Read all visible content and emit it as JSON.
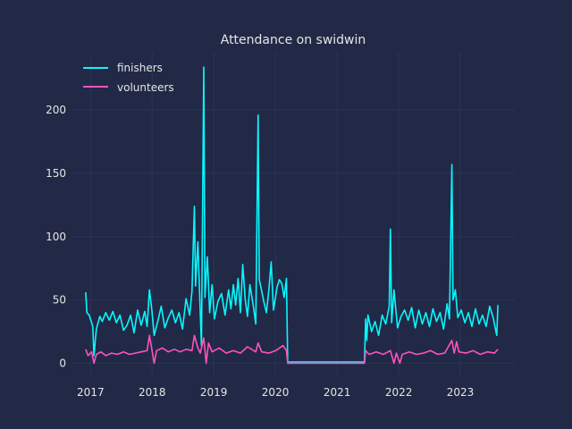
{
  "chart_data": {
    "type": "line",
    "title": "Attendance on swidwin",
    "xlabel": "",
    "ylabel": "",
    "grid": true,
    "legend_position": "top-left",
    "x_range": [
      "2016-09-10",
      "2023-11-20"
    ],
    "ylim": [
      -11,
      246
    ],
    "x_ticks": [
      "2017",
      "2018",
      "2019",
      "2020",
      "2021",
      "2022",
      "2023"
    ],
    "y_ticks": [
      0,
      50,
      100,
      150,
      200
    ],
    "colors": {
      "background": "#212946",
      "grid": "#2A3459",
      "finishers": "#08F7FE",
      "volunteers": "#FE53BB",
      "text": "#e6e6e6"
    },
    "series": [
      {
        "name": "finishers",
        "color": "#08F7FE",
        "points": [
          [
            "2016-12-03",
            56
          ],
          [
            "2016-12-10",
            40
          ],
          [
            "2016-12-24",
            38
          ],
          [
            "2017-01-14",
            29
          ],
          [
            "2017-01-21",
            6
          ],
          [
            "2017-02-04",
            27
          ],
          [
            "2017-02-25",
            37
          ],
          [
            "2017-03-11",
            33
          ],
          [
            "2017-04-01",
            40
          ],
          [
            "2017-04-22",
            34
          ],
          [
            "2017-05-13",
            41
          ],
          [
            "2017-06-03",
            32
          ],
          [
            "2017-06-24",
            38
          ],
          [
            "2017-07-15",
            26
          ],
          [
            "2017-08-05",
            30
          ],
          [
            "2017-08-26",
            38
          ],
          [
            "2017-09-16",
            24
          ],
          [
            "2017-10-07",
            42
          ],
          [
            "2017-10-28",
            30
          ],
          [
            "2017-11-18",
            41
          ],
          [
            "2017-12-02",
            29
          ],
          [
            "2017-12-16",
            58
          ],
          [
            "2017-12-30",
            42
          ],
          [
            "2018-01-13",
            22
          ],
          [
            "2018-02-03",
            33
          ],
          [
            "2018-02-24",
            45
          ],
          [
            "2018-03-17",
            28
          ],
          [
            "2018-04-07",
            36
          ],
          [
            "2018-04-28",
            42
          ],
          [
            "2018-05-19",
            32
          ],
          [
            "2018-06-09",
            40
          ],
          [
            "2018-06-30",
            27
          ],
          [
            "2018-07-21",
            51
          ],
          [
            "2018-08-11",
            38
          ],
          [
            "2018-08-25",
            57
          ],
          [
            "2018-09-08",
            124
          ],
          [
            "2018-09-15",
            61
          ],
          [
            "2018-09-29",
            96
          ],
          [
            "2018-10-13",
            40
          ],
          [
            "2018-10-20",
            14
          ],
          [
            "2018-11-03",
            234
          ],
          [
            "2018-11-10",
            52
          ],
          [
            "2018-11-24",
            84
          ],
          [
            "2018-12-08",
            40
          ],
          [
            "2018-12-22",
            62
          ],
          [
            "2019-01-05",
            35
          ],
          [
            "2019-01-26",
            49
          ],
          [
            "2019-02-16",
            55
          ],
          [
            "2019-03-09",
            38
          ],
          [
            "2019-03-30",
            58
          ],
          [
            "2019-04-13",
            43
          ],
          [
            "2019-04-27",
            62
          ],
          [
            "2019-05-11",
            46
          ],
          [
            "2019-05-25",
            67
          ],
          [
            "2019-06-08",
            40
          ],
          [
            "2019-06-22",
            78
          ],
          [
            "2019-07-06",
            51
          ],
          [
            "2019-07-20",
            37
          ],
          [
            "2019-08-03",
            62
          ],
          [
            "2019-08-24",
            45
          ],
          [
            "2019-09-07",
            31
          ],
          [
            "2019-09-21",
            196
          ],
          [
            "2019-09-28",
            66
          ],
          [
            "2019-10-12",
            57
          ],
          [
            "2019-10-26",
            48
          ],
          [
            "2019-11-09",
            40
          ],
          [
            "2019-11-23",
            57
          ],
          [
            "2019-12-07",
            80
          ],
          [
            "2019-12-21",
            42
          ],
          [
            "2020-01-11",
            60
          ],
          [
            "2020-01-25",
            66
          ],
          [
            "2020-02-08",
            63
          ],
          [
            "2020-02-22",
            52
          ],
          [
            "2020-03-07",
            67
          ],
          [
            "2020-03-14",
            1
          ],
          [
            "2020-06-01",
            1
          ],
          [
            "2021-01-01",
            1
          ],
          [
            "2021-06-01",
            1
          ],
          [
            "2021-06-12",
            1
          ],
          [
            "2021-06-19",
            35
          ],
          [
            "2021-06-26",
            18
          ],
          [
            "2021-07-03",
            38
          ],
          [
            "2021-07-24",
            25
          ],
          [
            "2021-08-14",
            33
          ],
          [
            "2021-09-04",
            22
          ],
          [
            "2021-09-25",
            38
          ],
          [
            "2021-10-16",
            31
          ],
          [
            "2021-11-06",
            45
          ],
          [
            "2021-11-13",
            106
          ],
          [
            "2021-11-20",
            32
          ],
          [
            "2021-12-04",
            58
          ],
          [
            "2021-12-25",
            28
          ],
          [
            "2022-01-15",
            37
          ],
          [
            "2022-02-05",
            42
          ],
          [
            "2022-02-26",
            34
          ],
          [
            "2022-03-19",
            44
          ],
          [
            "2022-04-09",
            28
          ],
          [
            "2022-04-30",
            42
          ],
          [
            "2022-05-21",
            31
          ],
          [
            "2022-06-11",
            40
          ],
          [
            "2022-07-02",
            29
          ],
          [
            "2022-07-23",
            43
          ],
          [
            "2022-08-13",
            33
          ],
          [
            "2022-09-03",
            40
          ],
          [
            "2022-09-24",
            27
          ],
          [
            "2022-10-15",
            47
          ],
          [
            "2022-10-29",
            35
          ],
          [
            "2022-11-12",
            157
          ],
          [
            "2022-11-19",
            50
          ],
          [
            "2022-12-03",
            58
          ],
          [
            "2022-12-17",
            36
          ],
          [
            "2023-01-07",
            42
          ],
          [
            "2023-01-28",
            32
          ],
          [
            "2023-02-18",
            40
          ],
          [
            "2023-03-11",
            29
          ],
          [
            "2023-04-01",
            43
          ],
          [
            "2023-04-22",
            31
          ],
          [
            "2023-05-13",
            38
          ],
          [
            "2023-06-03",
            29
          ],
          [
            "2023-06-24",
            45
          ],
          [
            "2023-07-15",
            36
          ],
          [
            "2023-08-05",
            22
          ],
          [
            "2023-08-12",
            46
          ]
        ]
      },
      {
        "name": "volunteers",
        "color": "#FE53BB",
        "points": [
          [
            "2016-12-03",
            11
          ],
          [
            "2016-12-17",
            6
          ],
          [
            "2017-01-07",
            9
          ],
          [
            "2017-01-21",
            0
          ],
          [
            "2017-02-04",
            7
          ],
          [
            "2017-03-04",
            9
          ],
          [
            "2017-04-01",
            6
          ],
          [
            "2017-05-06",
            8
          ],
          [
            "2017-06-10",
            7
          ],
          [
            "2017-07-15",
            9
          ],
          [
            "2017-08-19",
            7
          ],
          [
            "2017-09-23",
            8
          ],
          [
            "2017-10-28",
            9
          ],
          [
            "2017-12-02",
            10
          ],
          [
            "2017-12-16",
            22
          ],
          [
            "2017-12-30",
            11
          ],
          [
            "2018-01-13",
            0
          ],
          [
            "2018-01-27",
            10
          ],
          [
            "2018-03-03",
            12
          ],
          [
            "2018-04-07",
            9
          ],
          [
            "2018-05-12",
            11
          ],
          [
            "2018-06-16",
            9
          ],
          [
            "2018-07-21",
            11
          ],
          [
            "2018-08-25",
            10
          ],
          [
            "2018-09-08",
            22
          ],
          [
            "2018-09-29",
            12
          ],
          [
            "2018-10-13",
            8
          ],
          [
            "2018-11-03",
            20
          ],
          [
            "2018-11-17",
            0
          ],
          [
            "2018-12-01",
            16
          ],
          [
            "2018-12-22",
            9
          ],
          [
            "2019-02-02",
            12
          ],
          [
            "2019-03-16",
            8
          ],
          [
            "2019-04-27",
            10
          ],
          [
            "2019-06-08",
            8
          ],
          [
            "2019-07-20",
            13
          ],
          [
            "2019-09-07",
            9
          ],
          [
            "2019-09-21",
            16
          ],
          [
            "2019-10-12",
            9
          ],
          [
            "2019-11-23",
            8
          ],
          [
            "2020-01-04",
            10
          ],
          [
            "2020-02-15",
            14
          ],
          [
            "2020-03-07",
            10
          ],
          [
            "2020-03-14",
            0
          ],
          [
            "2021-06-12",
            0
          ],
          [
            "2021-06-19",
            10
          ],
          [
            "2021-07-10",
            7
          ],
          [
            "2021-08-21",
            9
          ],
          [
            "2021-10-02",
            7
          ],
          [
            "2021-11-13",
            10
          ],
          [
            "2021-12-04",
            0
          ],
          [
            "2021-12-18",
            8
          ],
          [
            "2022-01-08",
            0
          ],
          [
            "2022-01-22",
            7
          ],
          [
            "2022-03-05",
            9
          ],
          [
            "2022-04-16",
            7
          ],
          [
            "2022-05-28",
            8
          ],
          [
            "2022-07-09",
            10
          ],
          [
            "2022-08-20",
            7
          ],
          [
            "2022-10-01",
            8
          ],
          [
            "2022-11-12",
            18
          ],
          [
            "2022-11-26",
            8
          ],
          [
            "2022-12-10",
            17
          ],
          [
            "2022-12-24",
            9
          ],
          [
            "2023-02-04",
            8
          ],
          [
            "2023-03-18",
            10
          ],
          [
            "2023-04-29",
            7
          ],
          [
            "2023-06-10",
            9
          ],
          [
            "2023-07-22",
            8
          ],
          [
            "2023-08-12",
            11
          ]
        ]
      }
    ]
  }
}
